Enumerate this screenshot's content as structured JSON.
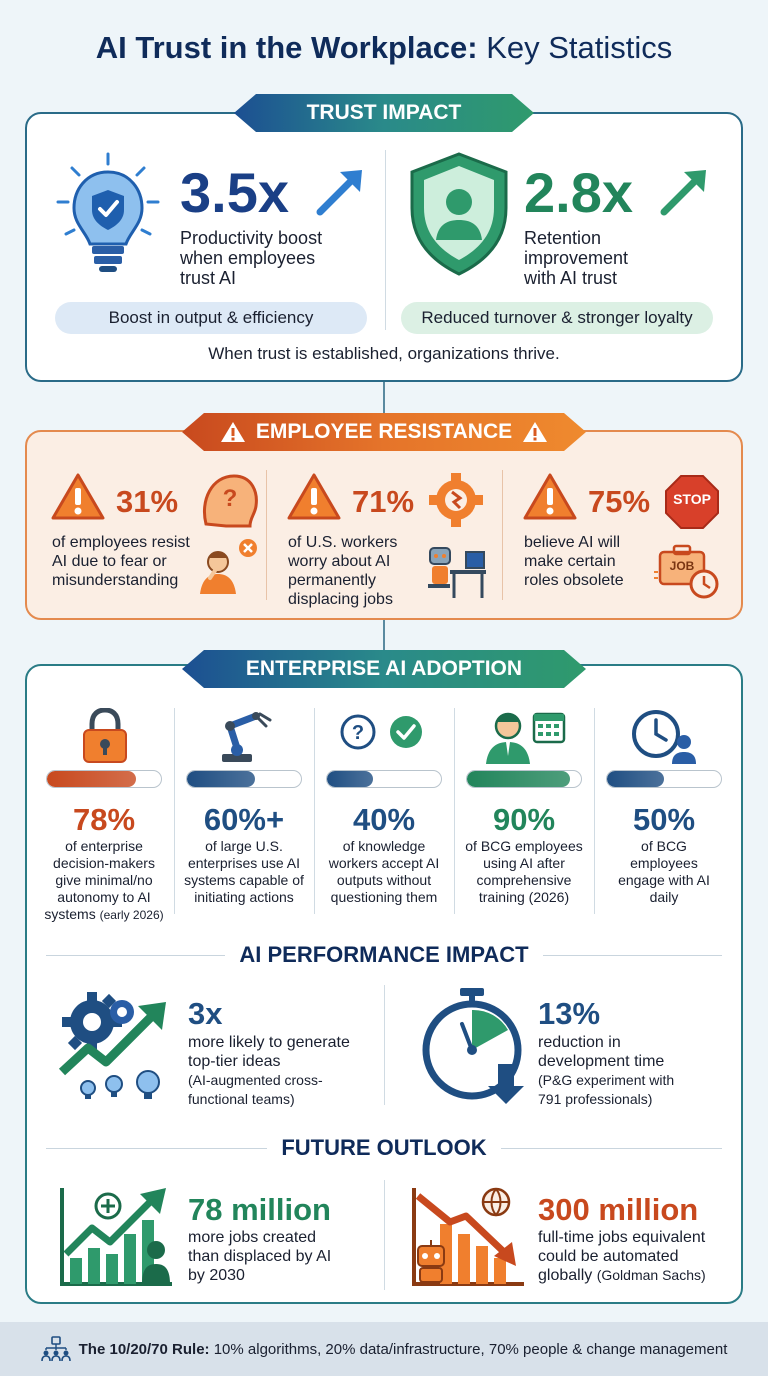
{
  "title": {
    "part1": "AI Trust in the Workplace:",
    "part2": "Key Statistics"
  },
  "trust": {
    "banner": "TRUST IMPACT",
    "left": {
      "value": "3.5x",
      "desc": [
        "Productivity boost",
        "when employees",
        "trust AI"
      ],
      "pill": "Boost in output & efficiency",
      "icon": "lightbulb-shield-icon"
    },
    "right": {
      "value": "2.8x",
      "desc": [
        "Retention",
        "improvement",
        "with AI trust"
      ],
      "pill": "Reduced turnover & stronger loyalty",
      "icon": "shield-person-icon"
    },
    "tagline": "When trust is established, organizations thrive."
  },
  "resistance": {
    "banner": "EMPLOYEE RESISTANCE",
    "items": [
      {
        "value": "31%",
        "desc": [
          "of employees resist",
          "AI due to fear or",
          "misunderstanding"
        ],
        "icon": "confused-person-icon"
      },
      {
        "value": "71%",
        "desc": [
          "of U.S. workers",
          "worry about AI",
          "permanently",
          "displacing jobs"
        ],
        "icon": "robot-at-desk-icon"
      },
      {
        "value": "75%",
        "desc": [
          "believe AI will",
          "make certain",
          "roles obsolete"
        ],
        "icon": "stop-job-icon",
        "stop": "STOP",
        "job": "JOB"
      }
    ]
  },
  "adoption": {
    "banner": "ENTERPRISE AI ADOPTION",
    "items": [
      {
        "value": "78%",
        "fill": 0.78,
        "desc": [
          "of enterprise",
          "decision-makers",
          "give minimal/no",
          "autonomy to AI"
        ],
        "note_main": "systems",
        "note_small": "(early 2026)",
        "color": "#c8491e",
        "icon": "padlock-icon"
      },
      {
        "value": "60%+",
        "fill": 0.6,
        "desc": [
          "of large U.S.",
          "enterprises use AI",
          "systems capable of",
          "initiating actions"
        ],
        "color": "#1f4e82",
        "icon": "robotic-arm-icon"
      },
      {
        "value": "40%",
        "fill": 0.4,
        "desc": [
          "of knowledge",
          "workers accept AI",
          "outputs without",
          "questioning them"
        ],
        "color": "#1f4e82",
        "icon": "question-check-icon"
      },
      {
        "value": "90%",
        "fill": 0.9,
        "desc": [
          "of BCG employees",
          "using AI after",
          "comprehensive",
          "training (2026)"
        ],
        "color": "#22855b",
        "icon": "employee-calendar-icon"
      },
      {
        "value": "50%",
        "fill": 0.5,
        "desc": [
          "of BCG",
          "employees",
          "engage with AI",
          "daily"
        ],
        "color": "#1f4e82",
        "icon": "clock-person-icon"
      }
    ]
  },
  "performance": {
    "heading": "AI PERFORMANCE IMPACT",
    "left": {
      "value": "3x",
      "desc": [
        "more likely to generate",
        "top-tier ideas"
      ],
      "note": [
        "(AI-augmented cross-",
        "functional teams)"
      ],
      "icon": "gears-growth-icon"
    },
    "right": {
      "value": "13%",
      "desc": [
        "reduction in",
        "development time"
      ],
      "note": [
        "(P&G experiment with",
        "791 professionals)"
      ],
      "icon": "stopwatch-icon"
    }
  },
  "future": {
    "heading": "FUTURE OUTLOOK",
    "left": {
      "value": "78 million",
      "desc": [
        "more jobs created",
        "than displaced by AI",
        "by 2030"
      ],
      "icon": "growth-chart-person-icon"
    },
    "right": {
      "value": "300 million",
      "desc": [
        "full-time jobs equivalent",
        "could be automated"
      ],
      "desc_last": "globally",
      "note": "(Goldman Sachs)",
      "icon": "declining-chart-robot-icon"
    }
  },
  "footer": {
    "bold": "The 10/20/70 Rule:",
    "text": "10% algorithms, 20% data/infrastructure, 70% people & change management",
    "icon": "team-network-icon"
  },
  "colors": {
    "navy": "#0f2b5a",
    "blue": "#1a3f86",
    "green": "#22855b",
    "orange": "#c8491e"
  }
}
